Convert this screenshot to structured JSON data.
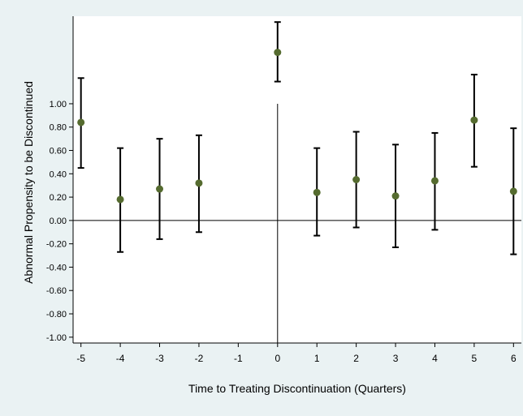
{
  "chart_data": {
    "type": "scatter",
    "title": "",
    "xlabel": "Time to Treating Discontinuation (Quarters)",
    "ylabel": "Abnormal Propensity to be Discontinued",
    "x_ticks": [
      -5,
      -4,
      -3,
      -2,
      -1,
      0,
      1,
      2,
      3,
      4,
      5,
      6
    ],
    "y_ticks": [
      -1.0,
      -0.8,
      -0.6,
      -0.4,
      -0.2,
      0.0,
      0.2,
      0.4,
      0.6,
      0.8,
      1.0
    ],
    "xlim": [
      -5.2,
      6.2
    ],
    "ylim": [
      -1.05,
      1.75
    ],
    "grid": false,
    "reference_lines": {
      "x": 0,
      "y": 0,
      "x_line_ymax": 1.0
    },
    "series": [
      {
        "marker_color": "#556b2f",
        "errorbar_color": "#000000",
        "points": [
          {
            "x": -5,
            "y": 0.84,
            "lo": 0.45,
            "hi": 1.22
          },
          {
            "x": -4,
            "y": 0.18,
            "lo": -0.27,
            "hi": 0.62
          },
          {
            "x": -3,
            "y": 0.27,
            "lo": -0.16,
            "hi": 0.7
          },
          {
            "x": -2,
            "y": 0.32,
            "lo": -0.1,
            "hi": 0.73
          },
          {
            "x": 0,
            "y": 1.44,
            "lo": 1.19,
            "hi": 1.7
          },
          {
            "x": 1,
            "y": 0.24,
            "lo": -0.13,
            "hi": 0.62
          },
          {
            "x": 2,
            "y": 0.35,
            "lo": -0.06,
            "hi": 0.76
          },
          {
            "x": 3,
            "y": 0.21,
            "lo": -0.23,
            "hi": 0.65
          },
          {
            "x": 4,
            "y": 0.34,
            "lo": -0.08,
            "hi": 0.75
          },
          {
            "x": 5,
            "y": 0.86,
            "lo": 0.46,
            "hi": 1.25
          },
          {
            "x": 6,
            "y": 0.25,
            "lo": -0.29,
            "hi": 0.79
          }
        ]
      }
    ]
  }
}
